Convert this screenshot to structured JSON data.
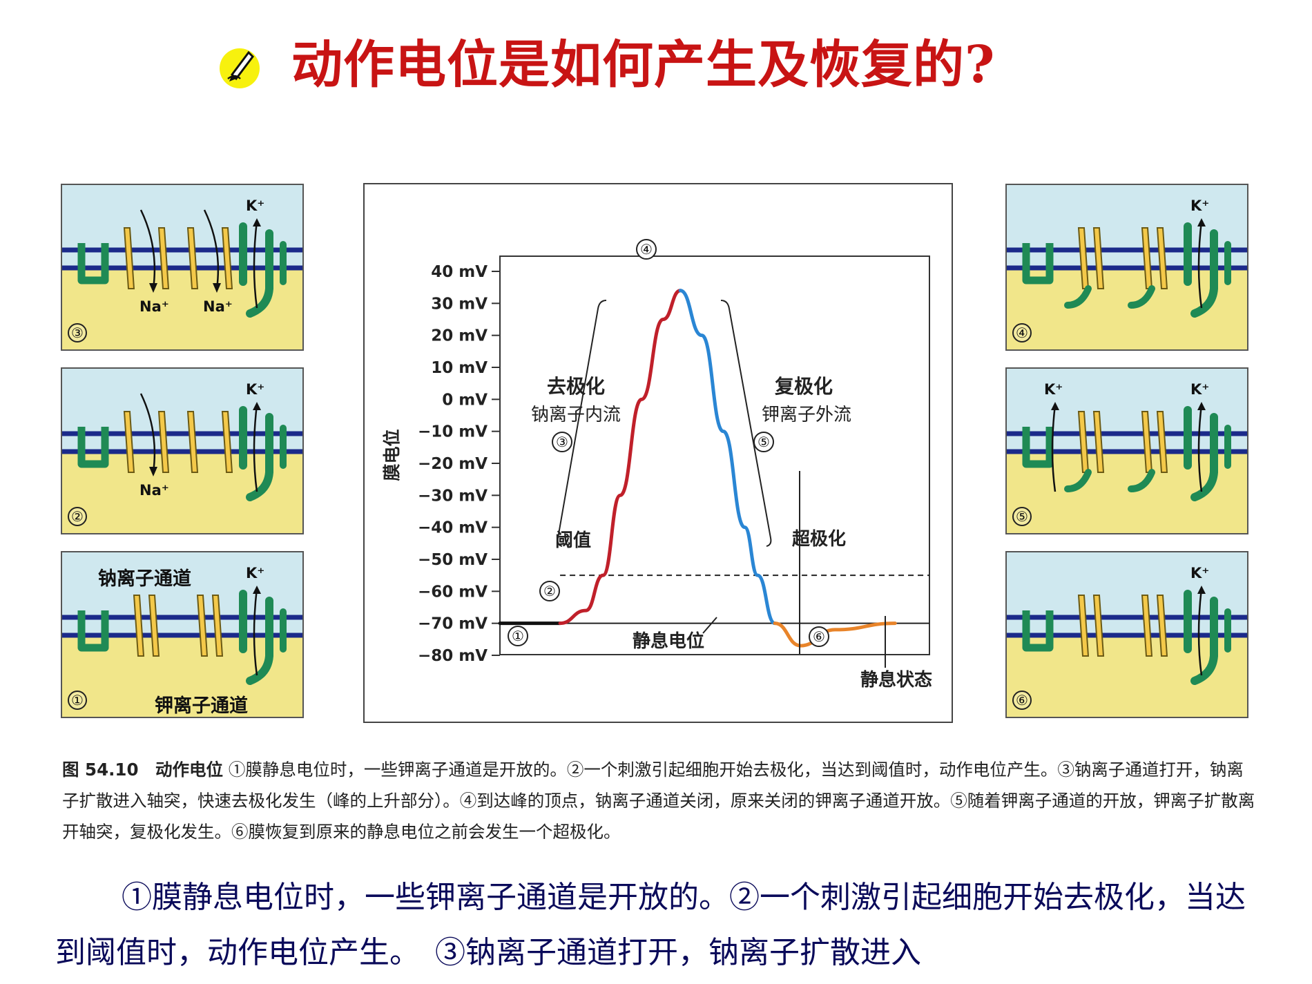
{
  "title": "动作电位是如何产生及恢复的?",
  "panels": [
    {
      "id": "3",
      "num": "③",
      "ions": [
        "K⁺",
        "Na⁺",
        "Na⁺"
      ]
    },
    {
      "id": "2",
      "num": "②",
      "ions": [
        "K⁺",
        "Na⁺"
      ]
    },
    {
      "id": "1",
      "num": "①",
      "ions": [
        "K⁺"
      ],
      "labels": {
        "na_channel": "钠离子通道",
        "k_channel": "钾离子通道"
      }
    },
    {
      "id": "4",
      "num": "④",
      "ions": [
        "K⁺"
      ]
    },
    {
      "id": "5",
      "num": "⑤",
      "ions": [
        "K⁺",
        "K⁺"
      ]
    },
    {
      "id": "6",
      "num": "⑥",
      "ions": [
        "K⁺"
      ]
    }
  ],
  "chart_data": {
    "type": "line",
    "ylabel": "膜电位",
    "ylim": [
      -80,
      40
    ],
    "yticks": [
      40,
      30,
      20,
      10,
      0,
      -10,
      -20,
      -30,
      -40,
      -50,
      -60,
      -70,
      -80
    ],
    "ytick_labels": [
      "40 mV",
      "30 mV",
      "20 mV",
      "10 mV",
      "0 mV",
      "−10 mV",
      "−20 mV",
      "−30 mV",
      "−40 mV",
      "−50 mV",
      "−60 mV",
      "−70 mV",
      "−80 mV"
    ],
    "threshold": -55,
    "resting": -70,
    "series": [
      {
        "segment": "resting",
        "color": "#111111",
        "y": [
          -70,
          -70,
          -70
        ]
      },
      {
        "segment": "depolarization",
        "color": "#c0202a",
        "y": [
          -70,
          -66,
          -55,
          -30,
          0,
          25,
          34
        ]
      },
      {
        "segment": "repolarization",
        "color": "#2a86d4",
        "y": [
          34,
          20,
          -10,
          -40,
          -55,
          -70
        ]
      },
      {
        "segment": "hyperpolarization",
        "color": "#e8842a",
        "y": [
          -70,
          -77,
          -72,
          -70
        ]
      }
    ],
    "stage_markers": [
      "①",
      "②",
      "③",
      "④",
      "⑤",
      "⑥"
    ],
    "annotations": {
      "depol_title": "去极化",
      "depol_sub": "钠离子内流",
      "repol_title": "复极化",
      "repol_sub": "钾离子外流",
      "threshold": "阈值",
      "hyper": "超极化",
      "resting_potential": "静息电位",
      "resting_state": "静息状态"
    }
  },
  "caption": {
    "label": "图 54.10　动作电位",
    "text": "①膜静息电位时，一些钾离子通道是开放的。②一个刺激引起细胞开始去极化，当达到阈值时，动作电位产生。③钠离子通道打开，钠离子扩散进入轴突，快速去极化发生（峰的上升部分）。④到达峰的顶点，钠离子通道关闭，原来关闭的钾离子通道开放。⑤随着钾离子通道的开放，钾离子扩散离开轴突，复极化发生。⑥膜恢复到原来的静息电位之前会发生一个超极化。"
  },
  "body_text": "①膜静息电位时，一些钾离子通道是开放的。②一个刺激引起细胞开始去极化，当达到阈值时，动作电位产生。　③钠离子通道打开，钠离子扩散进入"
}
